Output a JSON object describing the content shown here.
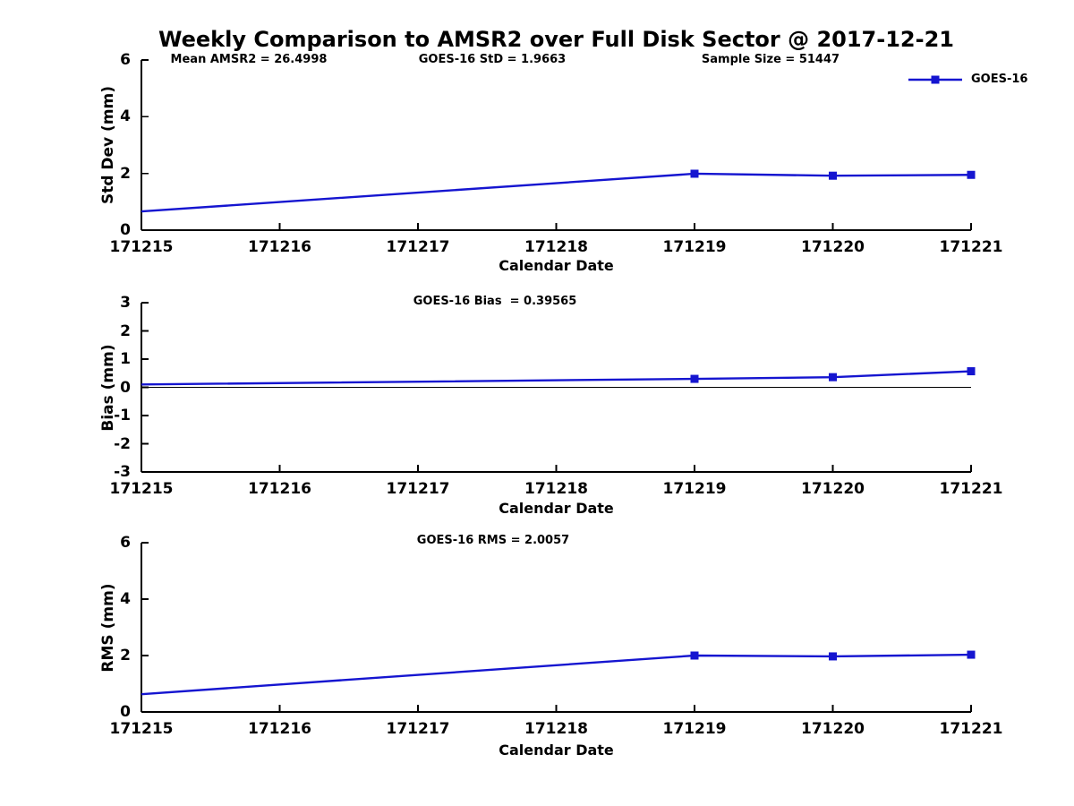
{
  "title": "Weekly Comparison to AMSR2 over Full Disk Sector @ 2017-12-21",
  "header_annotations": [
    "Mean AMSR2 = 26.4998",
    "GOES-16 StD = 1.9663",
    "Sample Size = 51447"
  ],
  "legend": {
    "label": "GOES-16",
    "marker": "filled-square"
  },
  "colors": {
    "background": "#ffffff",
    "series": "#1515d0",
    "axis": "#000000",
    "zero_line": "#000000",
    "text": "#000000"
  },
  "chart_data": [
    {
      "type": "line",
      "ylabel": "Std Dev (mm)",
      "xlabel": "Calendar Date",
      "annotation": "",
      "ylim": [
        0,
        6
      ],
      "yticks": [
        0,
        2,
        4,
        6
      ],
      "xlim": [
        171215,
        171221
      ],
      "xticks": [
        171215,
        171216,
        171217,
        171218,
        171219,
        171220,
        171221
      ],
      "grid": false,
      "zero_line": false,
      "legend_position": "top-right-outside",
      "series": [
        {
          "name": "GOES-16",
          "x": [
            171215,
            171219,
            171220,
            171221
          ],
          "y": [
            0.66,
            1.99,
            1.92,
            1.95
          ],
          "markers_at_x": [
            171219,
            171220,
            171221
          ]
        }
      ]
    },
    {
      "type": "line",
      "ylabel": "Bias (mm)",
      "xlabel": "Calendar Date",
      "annotation": "GOES-16 Bias  = 0.39565",
      "ylim": [
        -3,
        3
      ],
      "yticks": [
        -3,
        -2,
        -1,
        0,
        1,
        2,
        3
      ],
      "xlim": [
        171215,
        171221
      ],
      "xticks": [
        171215,
        171216,
        171217,
        171218,
        171219,
        171220,
        171221
      ],
      "grid": false,
      "zero_line": true,
      "series": [
        {
          "name": "GOES-16",
          "x": [
            171215,
            171219,
            171220,
            171221
          ],
          "y": [
            0.1,
            0.3,
            0.36,
            0.57
          ],
          "markers_at_x": [
            171219,
            171220,
            171221
          ]
        }
      ]
    },
    {
      "type": "line",
      "ylabel": "RMS (mm)",
      "xlabel": "Calendar Date",
      "annotation": "GOES-16 RMS = 2.0057",
      "ylim": [
        0,
        6
      ],
      "yticks": [
        0,
        2,
        4,
        6
      ],
      "xlim": [
        171215,
        171221
      ],
      "xticks": [
        171215,
        171216,
        171217,
        171218,
        171219,
        171220,
        171221
      ],
      "grid": false,
      "zero_line": false,
      "series": [
        {
          "name": "GOES-16",
          "x": [
            171215,
            171219,
            171220,
            171221
          ],
          "y": [
            0.63,
            2.0,
            1.97,
            2.03
          ],
          "markers_at_x": [
            171219,
            171220,
            171221
          ]
        }
      ]
    }
  ]
}
